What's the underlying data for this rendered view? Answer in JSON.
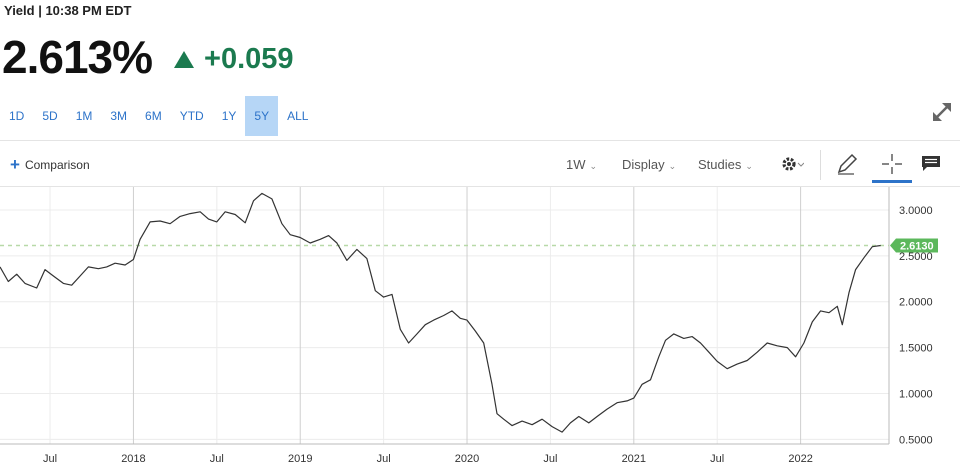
{
  "header": {
    "label": "Yield | 10:38 PM EDT"
  },
  "quote": {
    "price": "2.613%",
    "change": "+0.059",
    "direction": "up",
    "up_color": "#1b7a4f"
  },
  "ranges": [
    "1D",
    "5D",
    "1M",
    "3M",
    "6M",
    "YTD",
    "1Y",
    "5Y",
    "ALL"
  ],
  "active_range": "5Y",
  "toolbar": {
    "comparison": "Comparison",
    "interval": "1W",
    "display": "Display",
    "studies": "Studies"
  },
  "icons": [
    "expand-icon",
    "plus-icon",
    "gear-icon",
    "pencil-icon",
    "crosshair-icon",
    "comment-icon",
    "caret-down-icon"
  ],
  "chart_data": {
    "type": "line",
    "title": "",
    "xlabel": "",
    "ylabel": "",
    "xlim": [
      2017.2,
      2022.53
    ],
    "ylim": [
      0.45,
      3.25
    ],
    "x_ticks": [
      {
        "label": "Jul",
        "x": 2017.5
      },
      {
        "label": "2018",
        "x": 2018.0
      },
      {
        "label": "Jul",
        "x": 2018.5
      },
      {
        "label": "2019",
        "x": 2019.0
      },
      {
        "label": "Jul",
        "x": 2019.5
      },
      {
        "label": "2020",
        "x": 2020.0
      },
      {
        "label": "Jul",
        "x": 2020.5
      },
      {
        "label": "2021",
        "x": 2021.0
      },
      {
        "label": "Jul",
        "x": 2021.5
      },
      {
        "label": "2022",
        "x": 2022.0
      }
    ],
    "y_ticks": [
      "0.5000",
      "1.0000",
      "1.5000",
      "2.0000",
      "2.5000",
      "3.0000"
    ],
    "grid": true,
    "current_value": 2.613,
    "current_label": "2.6130",
    "line_color": "#333333",
    "tag_color": "#5cb85c",
    "series": [
      {
        "x": [
          2017.2,
          2017.25,
          2017.3,
          2017.35,
          2017.42,
          2017.47,
          2017.52,
          2017.58,
          2017.63,
          2017.68,
          2017.73,
          2017.79,
          2017.84,
          2017.89,
          2017.95,
          2018.0,
          2018.04,
          2018.1,
          2018.16,
          2018.22,
          2018.28,
          2018.34,
          2018.4,
          2018.45,
          2018.5,
          2018.55,
          2018.61,
          2018.67,
          2018.72,
          2018.77,
          2018.83,
          2018.89,
          2018.94,
          2019.0,
          2019.06,
          2019.12,
          2019.17,
          2019.22,
          2019.28,
          2019.34,
          2019.4,
          2019.45,
          2019.5,
          2019.55,
          2019.6,
          2019.65,
          2019.7,
          2019.75,
          2019.8,
          2019.86,
          2019.91,
          2019.96,
          2020.0,
          2020.05,
          2020.1,
          2020.15,
          2020.18,
          2020.22,
          2020.27,
          2020.33,
          2020.39,
          2020.45,
          2020.51,
          2020.57,
          2020.62,
          2020.67,
          2020.73,
          2020.78,
          2020.84,
          2020.9,
          2020.96,
          2021.0,
          2021.05,
          2021.1,
          2021.15,
          2021.19,
          2021.24,
          2021.3,
          2021.35,
          2021.4,
          2021.45,
          2021.5,
          2021.56,
          2021.62,
          2021.68,
          2021.74,
          2021.8,
          2021.86,
          2021.92,
          2021.97,
          2022.02,
          2022.07,
          2022.12,
          2022.17,
          2022.22,
          2022.25,
          2022.29,
          2022.33,
          2022.38,
          2022.43,
          2022.48
        ],
        "y": [
          2.38,
          2.22,
          2.3,
          2.2,
          2.15,
          2.35,
          2.28,
          2.2,
          2.18,
          2.28,
          2.38,
          2.36,
          2.38,
          2.42,
          2.4,
          2.46,
          2.68,
          2.87,
          2.88,
          2.85,
          2.93,
          2.96,
          2.98,
          2.9,
          2.87,
          2.98,
          2.95,
          2.86,
          3.1,
          3.18,
          3.12,
          2.85,
          2.73,
          2.7,
          2.64,
          2.68,
          2.72,
          2.64,
          2.45,
          2.57,
          2.47,
          2.12,
          2.05,
          2.08,
          1.7,
          1.55,
          1.65,
          1.75,
          1.8,
          1.85,
          1.9,
          1.82,
          1.8,
          1.68,
          1.55,
          1.1,
          0.78,
          0.72,
          0.65,
          0.7,
          0.66,
          0.72,
          0.64,
          0.58,
          0.68,
          0.75,
          0.68,
          0.75,
          0.83,
          0.9,
          0.92,
          0.95,
          1.1,
          1.15,
          1.4,
          1.58,
          1.65,
          1.6,
          1.62,
          1.55,
          1.45,
          1.35,
          1.27,
          1.32,
          1.36,
          1.45,
          1.55,
          1.52,
          1.5,
          1.4,
          1.55,
          1.78,
          1.9,
          1.88,
          1.95,
          1.75,
          2.1,
          2.35,
          2.48,
          2.6,
          2.613
        ]
      }
    ]
  }
}
